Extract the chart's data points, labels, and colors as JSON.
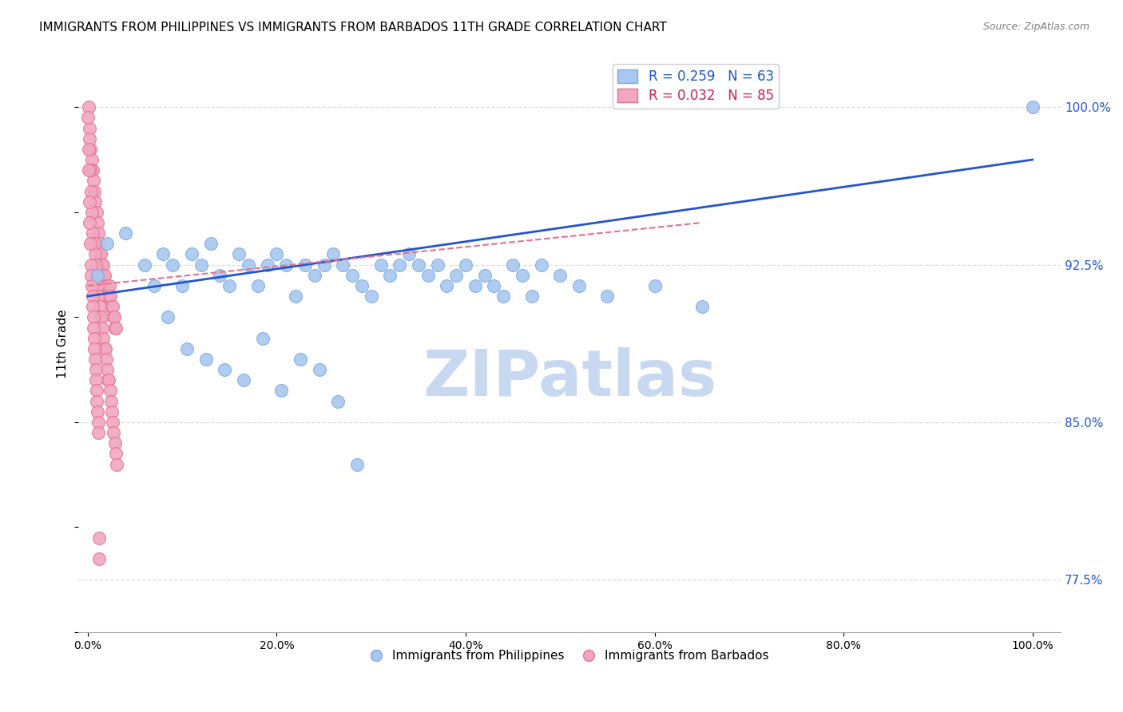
{
  "title": "IMMIGRANTS FROM PHILIPPINES VS IMMIGRANTS FROM BARBADOS 11TH GRADE CORRELATION CHART",
  "source": "Source: ZipAtlas.com",
  "ylabel": "11th Grade",
  "y_ticks": [
    77.5,
    85.0,
    92.5,
    100.0
  ],
  "y_tick_labels": [
    "77.5%",
    "85.0%",
    "92.5%",
    "100.0%"
  ],
  "legend_blue_text": "R = 0.259   N = 63",
  "legend_pink_text": "R = 0.032   N = 85",
  "legend_bottom_blue": "Immigrants from Philippines",
  "legend_bottom_pink": "Immigrants from Barbados",
  "blue_color": "#a8c8f0",
  "pink_color": "#f0a8c0",
  "blue_edge_color": "#7aaae0",
  "blue_line_color": "#2255cc",
  "pink_line_color": "#e87090",
  "pink_legend_text_color": "#cc2255",
  "watermark_color": "#c8d8f0",
  "background": "#ffffff",
  "grid_color": "#dddddd",
  "philippines_x": [
    1.0,
    2.0,
    4.0,
    6.0,
    7.0,
    8.0,
    9.0,
    10.0,
    11.0,
    12.0,
    13.0,
    14.0,
    15.0,
    16.0,
    17.0,
    18.0,
    19.0,
    20.0,
    21.0,
    22.0,
    23.0,
    24.0,
    25.0,
    26.0,
    27.0,
    28.0,
    29.0,
    30.0,
    31.0,
    32.0,
    33.0,
    34.0,
    35.0,
    36.0,
    37.0,
    38.0,
    39.0,
    40.0,
    41.0,
    42.0,
    43.0,
    44.0,
    45.0,
    46.0,
    47.0,
    48.0,
    50.0,
    52.0,
    55.0,
    60.0,
    65.0,
    100.0,
    8.5,
    10.5,
    12.5,
    14.5,
    16.5,
    18.5,
    20.5,
    22.5,
    24.5,
    26.5,
    28.5
  ],
  "philippines_y": [
    92.0,
    93.5,
    94.0,
    92.5,
    91.5,
    93.0,
    92.5,
    91.5,
    93.0,
    92.5,
    93.5,
    92.0,
    91.5,
    93.0,
    92.5,
    91.5,
    92.5,
    93.0,
    92.5,
    91.0,
    92.5,
    92.0,
    92.5,
    93.0,
    92.5,
    92.0,
    91.5,
    91.0,
    92.5,
    92.0,
    92.5,
    93.0,
    92.5,
    92.0,
    92.5,
    91.5,
    92.0,
    92.5,
    91.5,
    92.0,
    91.5,
    91.0,
    92.5,
    92.0,
    91.0,
    92.5,
    92.0,
    91.5,
    91.0,
    91.5,
    90.5,
    100.0,
    90.0,
    88.5,
    88.0,
    87.5,
    87.0,
    89.0,
    86.5,
    88.0,
    87.5,
    86.0,
    83.0
  ],
  "barbados_x": [
    0.1,
    0.2,
    0.3,
    0.4,
    0.5,
    0.6,
    0.7,
    0.8,
    0.9,
    1.0,
    1.1,
    1.2,
    1.3,
    1.4,
    1.5,
    1.6,
    1.7,
    1.8,
    1.9,
    2.0,
    2.1,
    2.2,
    2.3,
    2.4,
    2.5,
    2.6,
    2.7,
    2.8,
    2.9,
    3.0,
    0.15,
    0.25,
    0.35,
    0.45,
    0.55,
    0.65,
    0.75,
    0.85,
    0.95,
    1.05,
    1.15,
    1.25,
    1.35,
    1.45,
    1.55,
    1.65,
    1.75,
    1.85,
    1.95,
    2.05,
    2.15,
    2.25,
    2.35,
    2.45,
    2.55,
    2.65,
    2.75,
    2.85,
    2.95,
    3.05,
    0.05,
    0.08,
    0.12,
    0.18,
    0.22,
    0.28,
    0.32,
    0.38,
    0.42,
    0.48,
    0.52,
    0.58,
    0.62,
    0.68,
    0.72,
    0.78,
    0.82,
    0.88,
    0.92,
    0.98,
    1.02,
    1.08,
    1.12,
    1.18,
    1.22
  ],
  "barbados_y": [
    100.0,
    99.0,
    98.0,
    97.5,
    97.0,
    96.5,
    96.0,
    95.5,
    95.0,
    94.5,
    94.0,
    93.5,
    93.0,
    93.0,
    92.5,
    92.5,
    92.0,
    92.0,
    91.5,
    91.5,
    91.0,
    91.0,
    91.5,
    91.0,
    90.5,
    90.5,
    90.0,
    90.0,
    89.5,
    89.5,
    98.5,
    97.0,
    96.0,
    95.0,
    94.0,
    93.5,
    93.0,
    92.5,
    92.0,
    91.5,
    91.0,
    90.5,
    90.0,
    90.0,
    89.5,
    89.0,
    88.5,
    88.5,
    88.0,
    87.5,
    87.0,
    87.0,
    86.5,
    86.0,
    85.5,
    85.0,
    84.5,
    84.0,
    83.5,
    83.0,
    99.5,
    98.0,
    97.0,
    95.5,
    94.5,
    93.5,
    92.5,
    92.0,
    91.5,
    91.0,
    90.5,
    90.0,
    89.5,
    89.0,
    88.5,
    88.0,
    87.5,
    87.0,
    86.5,
    86.0,
    85.5,
    85.0,
    84.5,
    78.5,
    79.5
  ],
  "blue_trend_x": [
    0,
    100
  ],
  "blue_trend_y": [
    91.0,
    97.5
  ],
  "pink_trend_x": [
    0,
    65
  ],
  "pink_trend_y": [
    91.5,
    94.5
  ],
  "xlim": [
    -1,
    103
  ],
  "ylim": [
    75.0,
    102.5
  ]
}
